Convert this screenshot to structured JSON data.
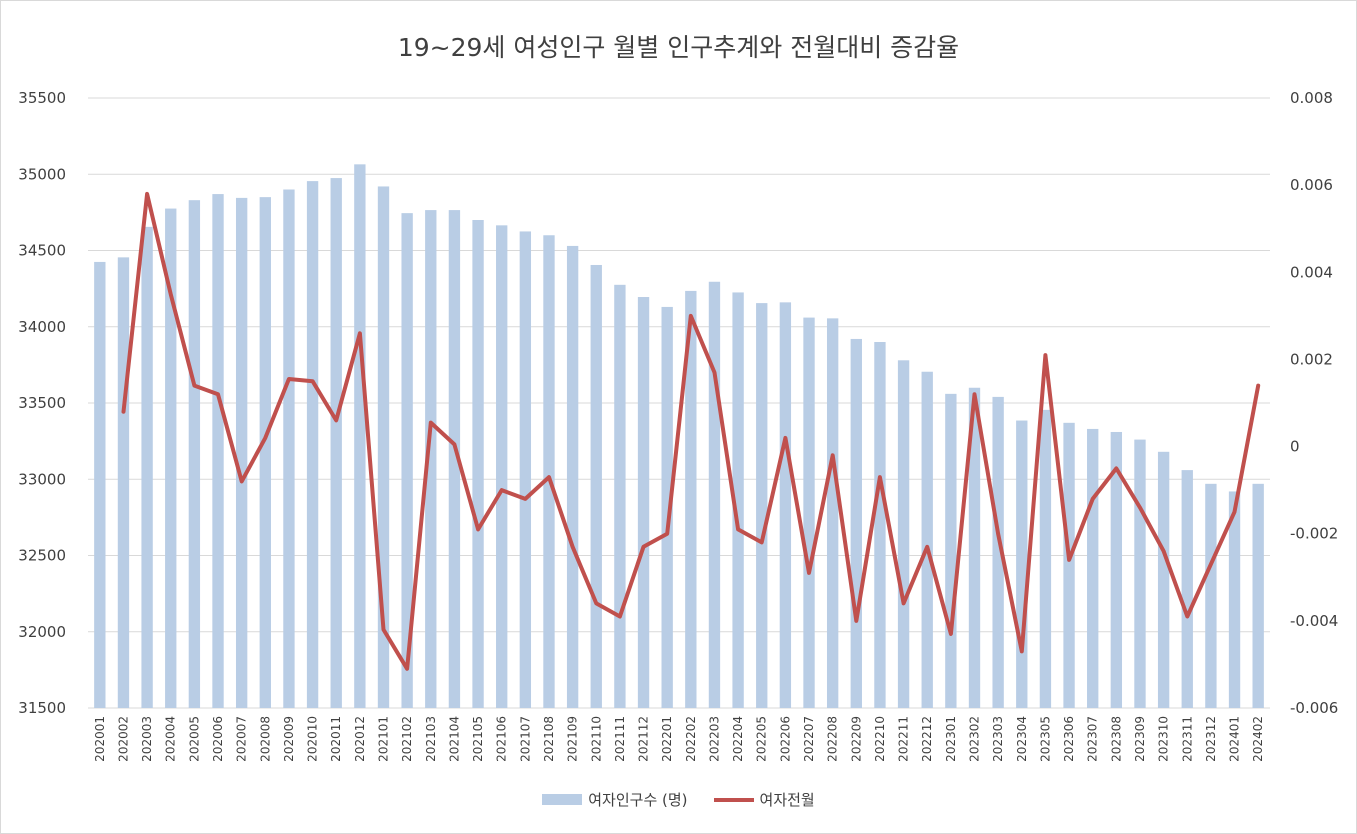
{
  "colors": {
    "bar": "#b9cde5",
    "line": "#c0504d",
    "grid": "#d9d9d9",
    "text": "#404040"
  },
  "chart_data": {
    "type": "bar",
    "title": "19~29세 여성인구 월별 인구추계와 전월대비 증감율",
    "categories": [
      "202001",
      "202002",
      "202003",
      "202004",
      "202005",
      "202006",
      "202007",
      "202008",
      "202009",
      "202010",
      "202011",
      "202012",
      "202101",
      "202102",
      "202103",
      "202104",
      "202105",
      "202106",
      "202107",
      "202108",
      "202109",
      "202110",
      "202111",
      "202112",
      "202201",
      "202202",
      "202203",
      "202204",
      "202205",
      "202206",
      "202207",
      "202208",
      "202209",
      "202210",
      "202211",
      "202212",
      "202301",
      "202302",
      "202303",
      "202304",
      "202305",
      "202306",
      "202307",
      "202308",
      "202309",
      "202310",
      "202311",
      "202312",
      "202401",
      "202402"
    ],
    "series": [
      {
        "name": "여자인구수 (명)",
        "type": "bar",
        "axis": "left",
        "values": [
          34425,
          34455,
          34655,
          34775,
          34830,
          34870,
          34845,
          34850,
          34900,
          34955,
          34975,
          35065,
          34920,
          34745,
          34765,
          34765,
          34700,
          34665,
          34625,
          34600,
          34530,
          34405,
          34275,
          34195,
          34130,
          34235,
          34295,
          34225,
          34155,
          34160,
          34060,
          34055,
          33920,
          33900,
          33780,
          33705,
          33560,
          33600,
          33540,
          33385,
          33455,
          33370,
          33330,
          33310,
          33260,
          33180,
          33060,
          32970,
          32920,
          32970
        ]
      },
      {
        "name": "여자전월",
        "type": "line",
        "axis": "right",
        "values": [
          null,
          0.0008,
          0.0058,
          0.0035,
          0.0014,
          0.0012,
          -0.0008,
          0.0002,
          0.00155,
          0.0015,
          0.0006,
          0.0026,
          -0.0042,
          -0.0051,
          0.00055,
          5e-05,
          -0.0019,
          -0.001,
          -0.0012,
          -0.0007,
          -0.0023,
          -0.0036,
          -0.0039,
          -0.0023,
          -0.002,
          0.003,
          0.0017,
          -0.0019,
          -0.0022,
          0.0002,
          -0.0029,
          -0.0002,
          -0.004,
          -0.0007,
          -0.0036,
          -0.0023,
          -0.0043,
          0.0012,
          -0.002,
          -0.0047,
          0.0021,
          -0.0026,
          -0.0012,
          -0.0005,
          -0.0014,
          -0.0024,
          -0.0039,
          -0.0027,
          -0.0015,
          0.0014
        ]
      }
    ],
    "y_left": {
      "min": 31500,
      "max": 35500,
      "ticks": [
        "31500",
        "32000",
        "32500",
        "33000",
        "33500",
        "34000",
        "34500",
        "35000",
        "35500"
      ]
    },
    "y_right": {
      "min": -0.006,
      "max": 0.008,
      "ticks": [
        "-0.006",
        "-0.004",
        "-0.002",
        "0",
        "0.002",
        "0.004",
        "0.006",
        "0.008"
      ]
    },
    "grid": true,
    "legend": "bottom"
  }
}
